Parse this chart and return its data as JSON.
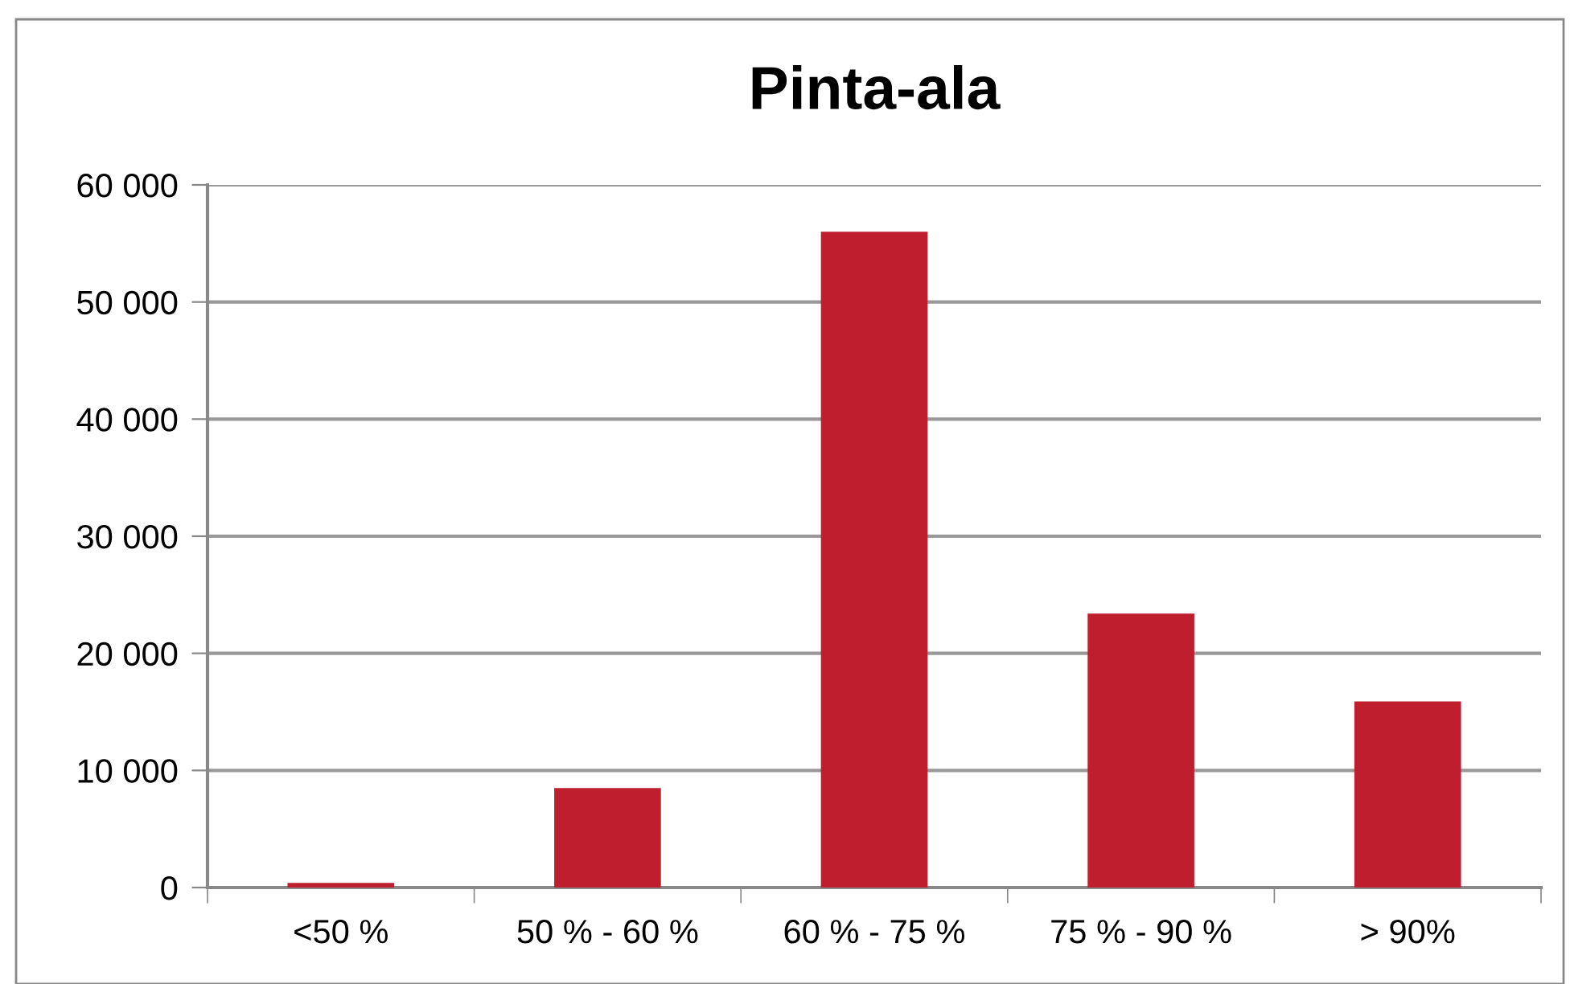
{
  "chart_data": {
    "type": "bar",
    "title": "Pinta-ala",
    "categories": [
      "<50 %",
      "50 % - 60 %",
      "60 % - 75 %",
      "75 % - 90 %",
      "> 90%"
    ],
    "values": [
      400,
      8500,
      56000,
      23400,
      15900
    ],
    "color": "#be1e2d",
    "ylim": [
      0,
      60000
    ],
    "yticks": [
      0,
      {
        "value": 10000,
        "label": "10 000"
      },
      {
        "value": 20000,
        "label": "20 000"
      },
      {
        "value": 30000,
        "label": "30 000"
      },
      {
        "value": 40000,
        "label": "40 000"
      },
      {
        "value": 50000,
        "label": "50 000"
      },
      {
        "value": 60000,
        "label": "60 000"
      }
    ],
    "grid": "y",
    "legend": false
  }
}
